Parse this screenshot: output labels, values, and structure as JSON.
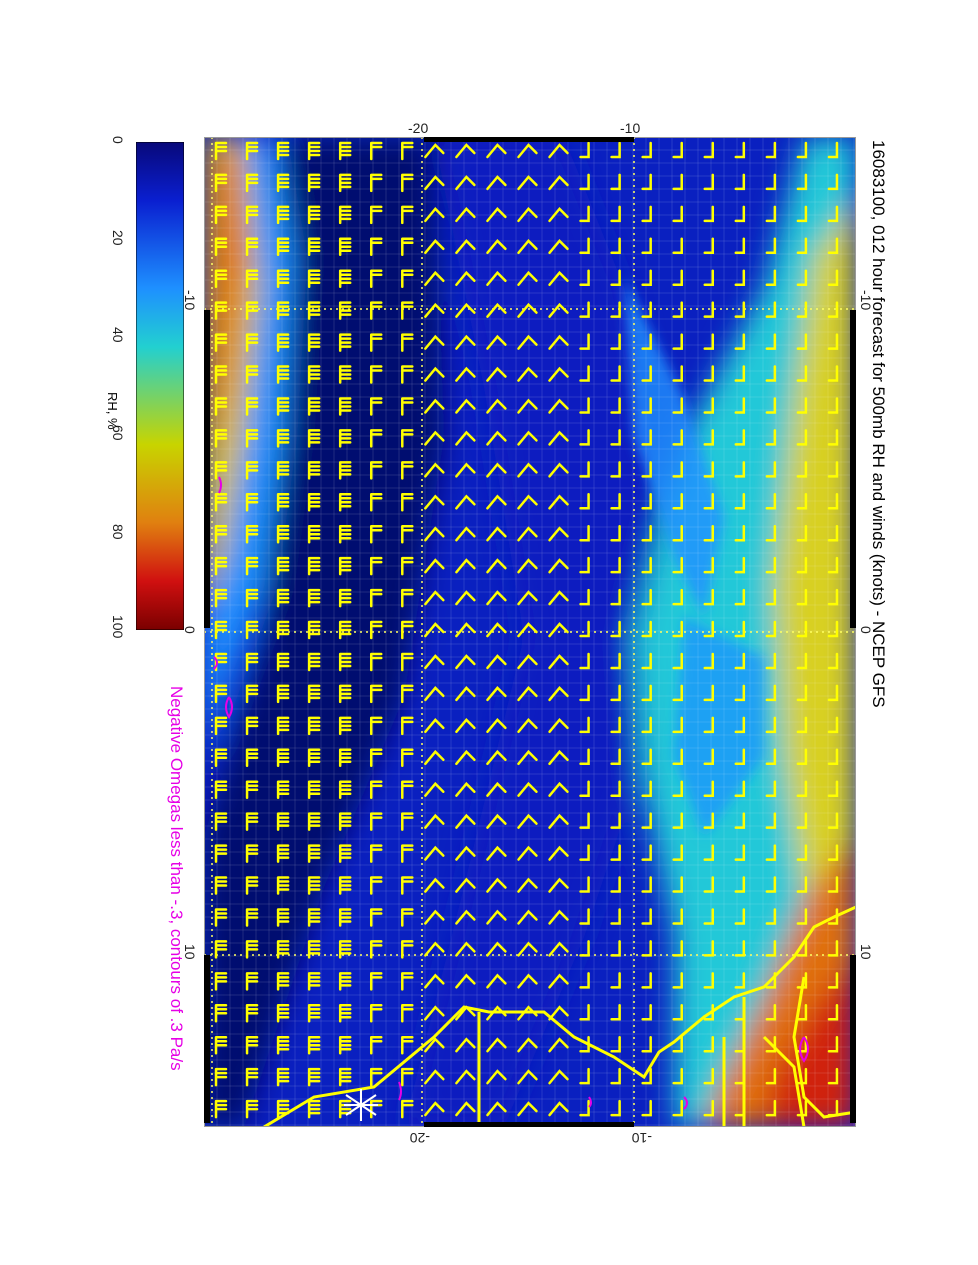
{
  "title": "16083100, 012 hour forecast for 500mb RH and winds (knots) - NCEP GFS",
  "omega_note": "Negative Omegas less than -.3, contours of .3 Pa/s",
  "colorbar": {
    "label": "RH, %",
    "ticks": [
      "0",
      "20",
      "40",
      "60",
      "80",
      "100"
    ],
    "colors": [
      "#08087a",
      "#0a1fd0",
      "#1e90ff",
      "#22d0d0",
      "#c8d400",
      "#e08010",
      "#d01010",
      "#7a0000"
    ]
  },
  "map": {
    "top_axis_ticks": [
      "-20",
      "-10"
    ],
    "bottom_axis_ticks": [
      "-20",
      "-10"
    ],
    "left_axis_ticks": [
      "-10",
      "0",
      "10"
    ],
    "right_axis_ticks": [
      "-10",
      "0",
      "10"
    ],
    "colors": {
      "dry": "#0a1fc0",
      "very_dry": "#061070",
      "moist": "#22c8d8",
      "humid": "#d8d020",
      "wet": "#d02010",
      "barbs": "#ffff00",
      "coast": "#ffff00",
      "omega": "#e600e6",
      "grid": "#ffff60"
    }
  }
}
